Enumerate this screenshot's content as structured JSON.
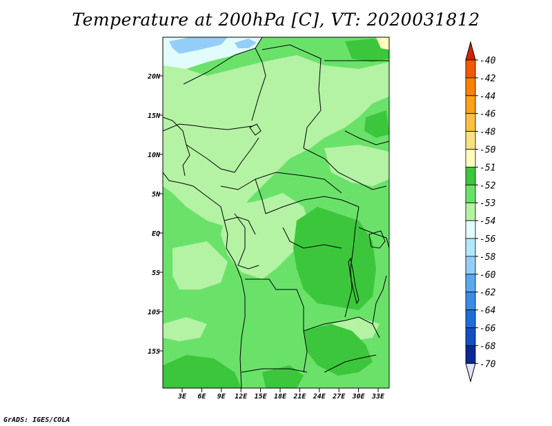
{
  "title": "Temperature at 200hPa [C], VT: 2020031812",
  "footer": "GrADS: IGES/COLA",
  "lat_labels": [
    "20N",
    "15N",
    "10N",
    "5N",
    "EQ",
    "5S",
    "10S",
    "15S"
  ],
  "lon_labels": [
    "3E",
    "6E",
    "9E",
    "12E",
    "15E",
    "18E",
    "21E",
    "24E",
    "27E",
    "30E",
    "33E"
  ],
  "colorbar": {
    "levels": [
      {
        "label": "-40",
        "color": "#e82800"
      },
      {
        "label": "-42",
        "color": "#f05a00"
      },
      {
        "label": "-44",
        "color": "#f58200"
      },
      {
        "label": "-46",
        "color": "#faa01a"
      },
      {
        "label": "-48",
        "color": "#fcc040"
      },
      {
        "label": "-50",
        "color": "#fde080"
      },
      {
        "label": "-51",
        "color": "#fffcc0"
      },
      {
        "label": "-52",
        "color": "#3cc63c"
      },
      {
        "label": "-53",
        "color": "#6ae26a"
      },
      {
        "label": "-54",
        "color": "#b4f2a4"
      },
      {
        "label": "-56",
        "color": "#e2fcfc"
      },
      {
        "label": "-58",
        "color": "#b4e6fa"
      },
      {
        "label": "-60",
        "color": "#94cef8"
      },
      {
        "label": "-62",
        "color": "#5aa8ee"
      },
      {
        "label": "-64",
        "color": "#3a8ce6"
      },
      {
        "label": "-66",
        "color": "#1e6ed8"
      },
      {
        "label": "-68",
        "color": "#1250c0"
      },
      {
        "label": "-70",
        "color": "#0a2890"
      }
    ],
    "top_arrow_color": "#d82000",
    "bottom_arrow_color": "#e2e2f8",
    "bottom_fill_color": "#00145a"
  },
  "map_colors": {
    "base": "#6ae26a",
    "light": "#b4f2a4",
    "dark": "#3cc63c",
    "pale": "#e2fcfc",
    "blue": "#94cef8",
    "yellow": "#fffcc0"
  }
}
